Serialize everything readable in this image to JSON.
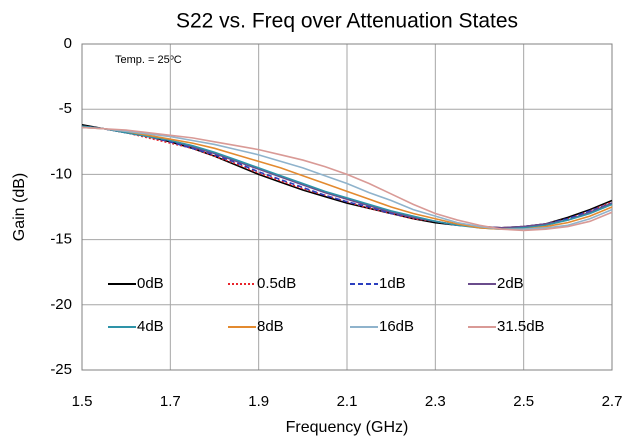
{
  "chart_data": {
    "type": "line",
    "title": "S22 vs. Freq over Attenuation States",
    "annotation": "Temp. = 25ºC",
    "xlabel": "Frequency (GHz)",
    "ylabel": "Gain (dB)",
    "x": [
      1.5,
      1.55,
      1.6,
      1.65,
      1.7,
      1.75,
      1.8,
      1.85,
      1.9,
      1.95,
      2.0,
      2.05,
      2.1,
      2.15,
      2.2,
      2.25,
      2.3,
      2.35,
      2.4,
      2.45,
      2.5,
      2.55,
      2.6,
      2.65,
      2.7
    ],
    "xlim": [
      1.5,
      2.7
    ],
    "xticks": [
      1.5,
      1.7,
      1.9,
      2.1,
      2.3,
      2.5,
      2.7
    ],
    "ylim": [
      -25,
      0
    ],
    "yticks": [
      -25,
      -20,
      -15,
      -10,
      -5,
      0
    ],
    "grid": true,
    "series": [
      {
        "name": "0dB",
        "color": "#000000",
        "style": "solid",
        "values": [
          -6.2,
          -6.5,
          -6.8,
          -7.1,
          -7.5,
          -8.0,
          -8.6,
          -9.3,
          -10.0,
          -10.6,
          -11.2,
          -11.7,
          -12.2,
          -12.6,
          -13.0,
          -13.4,
          -13.7,
          -13.9,
          -14.0,
          -14.1,
          -14.0,
          -13.8,
          -13.3,
          -12.7,
          -12.0
        ]
      },
      {
        "name": "0.5dB",
        "color": "#e8242b",
        "style": "dotted",
        "values": [
          -6.3,
          -6.5,
          -6.8,
          -7.2,
          -7.6,
          -8.0,
          -8.6,
          -9.2,
          -9.9,
          -10.5,
          -11.1,
          -11.6,
          -12.1,
          -12.6,
          -13.0,
          -13.4,
          -13.6,
          -13.9,
          -14.0,
          -14.1,
          -14.0,
          -13.8,
          -13.4,
          -12.8,
          -12.1
        ]
      },
      {
        "name": "1dB",
        "color": "#2b3fbf",
        "style": "dashed",
        "values": [
          -6.3,
          -6.5,
          -6.8,
          -7.1,
          -7.5,
          -8.0,
          -8.5,
          -9.1,
          -9.8,
          -10.4,
          -11.0,
          -11.6,
          -12.1,
          -12.5,
          -13.0,
          -13.3,
          -13.6,
          -13.9,
          -14.0,
          -14.1,
          -14.0,
          -13.8,
          -13.4,
          -12.8,
          -12.2
        ]
      },
      {
        "name": "2dB",
        "color": "#6a4c8c",
        "style": "solid",
        "values": [
          -6.3,
          -6.5,
          -6.8,
          -7.1,
          -7.4,
          -7.9,
          -8.4,
          -9.0,
          -9.6,
          -10.2,
          -10.8,
          -11.4,
          -11.9,
          -12.4,
          -12.9,
          -13.3,
          -13.6,
          -13.9,
          -14.0,
          -14.1,
          -14.0,
          -13.8,
          -13.5,
          -12.9,
          -12.2
        ]
      },
      {
        "name": "4dB",
        "color": "#2e93a8",
        "style": "solid",
        "values": [
          -6.3,
          -6.5,
          -6.8,
          -7.1,
          -7.4,
          -7.8,
          -8.3,
          -8.9,
          -9.5,
          -10.1,
          -10.7,
          -11.3,
          -11.8,
          -12.3,
          -12.8,
          -13.2,
          -13.6,
          -13.9,
          -14.1,
          -14.2,
          -14.1,
          -13.9,
          -13.5,
          -13.0,
          -12.3
        ]
      },
      {
        "name": "8dB",
        "color": "#e38a2f",
        "style": "solid",
        "values": [
          -6.4,
          -6.5,
          -6.7,
          -7.0,
          -7.3,
          -7.6,
          -8.0,
          -8.5,
          -9.0,
          -9.5,
          -10.1,
          -10.7,
          -11.3,
          -11.9,
          -12.5,
          -13.0,
          -13.4,
          -13.8,
          -14.1,
          -14.2,
          -14.2,
          -14.0,
          -13.7,
          -13.2,
          -12.5
        ]
      },
      {
        "name": "16dB",
        "color": "#8fb3cc",
        "style": "solid",
        "values": [
          -6.4,
          -6.5,
          -6.7,
          -6.9,
          -7.1,
          -7.4,
          -7.7,
          -8.1,
          -8.5,
          -9.0,
          -9.5,
          -10.1,
          -10.7,
          -11.4,
          -12.0,
          -12.7,
          -13.2,
          -13.7,
          -14.0,
          -14.2,
          -14.2,
          -14.1,
          -13.9,
          -13.4,
          -12.7
        ]
      },
      {
        "name": "31.5dB",
        "color": "#d99a96",
        "style": "solid",
        "values": [
          -6.4,
          -6.5,
          -6.6,
          -6.8,
          -7.0,
          -7.2,
          -7.5,
          -7.8,
          -8.1,
          -8.5,
          -8.9,
          -9.4,
          -10.0,
          -10.7,
          -11.5,
          -12.3,
          -13.0,
          -13.5,
          -13.9,
          -14.2,
          -14.3,
          -14.2,
          -14.0,
          -13.6,
          -12.9
        ]
      }
    ]
  }
}
